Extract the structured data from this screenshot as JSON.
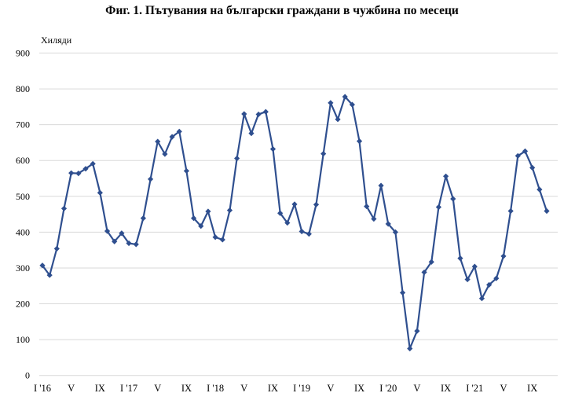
{
  "title": "Фиг. 1. Пътувания на български граждани в чужбина по месеци",
  "unit_label": "Хиляди",
  "colors": {
    "line": "#2f4f8f",
    "grid": "#d9d9d9"
  },
  "chart_data": {
    "type": "line",
    "title": "Фиг. 1. Пътувания на български граждани в чужбина по месеци",
    "xlabel": "",
    "ylabel": "Хиляди",
    "ylim": [
      0,
      900
    ],
    "yticks": [
      0,
      100,
      200,
      300,
      400,
      500,
      600,
      700,
      800,
      900
    ],
    "grid": true,
    "legend": null,
    "x_tick_labels": [
      {
        "index": 0,
        "label": "I '16"
      },
      {
        "index": 4,
        "label": "V"
      },
      {
        "index": 8,
        "label": "IX"
      },
      {
        "index": 12,
        "label": "I '17"
      },
      {
        "index": 16,
        "label": "V"
      },
      {
        "index": 20,
        "label": "IX"
      },
      {
        "index": 24,
        "label": "I '18"
      },
      {
        "index": 28,
        "label": "V"
      },
      {
        "index": 32,
        "label": "IX"
      },
      {
        "index": 36,
        "label": "I '19"
      },
      {
        "index": 40,
        "label": "V"
      },
      {
        "index": 44,
        "label": "IX"
      },
      {
        "index": 48,
        "label": "I '20"
      },
      {
        "index": 52,
        "label": "V"
      },
      {
        "index": 56,
        "label": "IX"
      },
      {
        "index": 60,
        "label": "I '21"
      },
      {
        "index": 64,
        "label": "V"
      },
      {
        "index": 68,
        "label": "IX"
      }
    ],
    "categories": [
      "I '16",
      "II '16",
      "III '16",
      "IV '16",
      "V '16",
      "VI '16",
      "VII '16",
      "VIII '16",
      "IX '16",
      "X '16",
      "XI '16",
      "XII '16",
      "I '17",
      "II '17",
      "III '17",
      "IV '17",
      "V '17",
      "VI '17",
      "VII '17",
      "VIII '17",
      "IX '17",
      "X '17",
      "XI '17",
      "XII '17",
      "I '18",
      "II '18",
      "III '18",
      "IV '18",
      "V '18",
      "VI '18",
      "VII '18",
      "VIII '18",
      "IX '18",
      "X '18",
      "XI '18",
      "XII '18",
      "I '19",
      "II '19",
      "III '19",
      "IV '19",
      "V '19",
      "VI '19",
      "VII '19",
      "VIII '19",
      "IX '19",
      "X '19",
      "XI '19",
      "XII '19",
      "I '20",
      "II '20",
      "III '20",
      "IV '20",
      "V '20",
      "VI '20",
      "VII '20",
      "VIII '20",
      "IX '20",
      "X '20",
      "XI '20",
      "XII '20",
      "I '21",
      "II '21",
      "III '21",
      "IV '21",
      "V '21",
      "VI '21",
      "VII '21",
      "VIII '21",
      "IX '21",
      "X '21",
      "XI '21"
    ],
    "series": [
      {
        "name": "Пътувания на български граждани в чужбина",
        "marker": "diamond",
        "values": [
          307,
          280,
          354,
          466,
          565,
          564,
          577,
          591,
          510,
          403,
          374,
          397,
          369,
          366,
          439,
          548,
          653,
          618,
          666,
          681,
          571,
          439,
          417,
          458,
          386,
          379,
          461,
          606,
          730,
          676,
          729,
          736,
          632,
          453,
          426,
          478,
          402,
          395,
          477,
          619,
          761,
          715,
          778,
          756,
          654,
          472,
          437,
          530,
          423,
          400,
          231,
          75,
          124,
          288,
          317,
          470,
          556,
          493,
          327,
          268,
          304,
          215,
          253,
          271,
          333,
          459,
          613,
          626,
          580,
          519,
          459
        ]
      }
    ]
  }
}
